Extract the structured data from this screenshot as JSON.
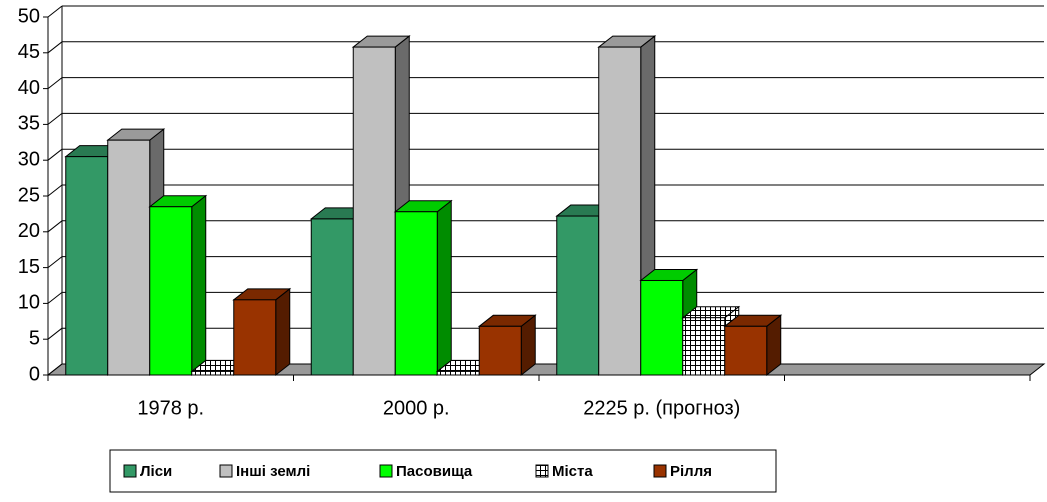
{
  "chart_data": {
    "type": "bar3d",
    "categories": [
      "1978 р.",
      "2000 р.",
      "2225 р. (прогноз)",
      null
    ],
    "series": [
      {
        "name": "Ліси",
        "color": "#339966",
        "values": [
          30.5,
          21.8,
          22.2,
          null
        ]
      },
      {
        "name": "Інші землі",
        "color": "#c0c0c0",
        "values": [
          32.8,
          45.8,
          45.8,
          null
        ]
      },
      {
        "name": "Пасовища",
        "color": "#00ff00",
        "values": [
          23.5,
          22.8,
          13.2,
          null
        ]
      },
      {
        "name": "Міста",
        "color": "#ffffff",
        "values": [
          0.5,
          0.5,
          8,
          null
        ]
      },
      {
        "name": "Рілля",
        "color": "#993300",
        "values": [
          10.5,
          6.8,
          6.8,
          null
        ]
      }
    ],
    "ylim": [
      0,
      50
    ],
    "yticks": [
      0,
      5,
      10,
      15,
      20,
      25,
      30,
      35,
      40,
      45,
      50
    ],
    "grid": true,
    "legend": "bottom"
  }
}
